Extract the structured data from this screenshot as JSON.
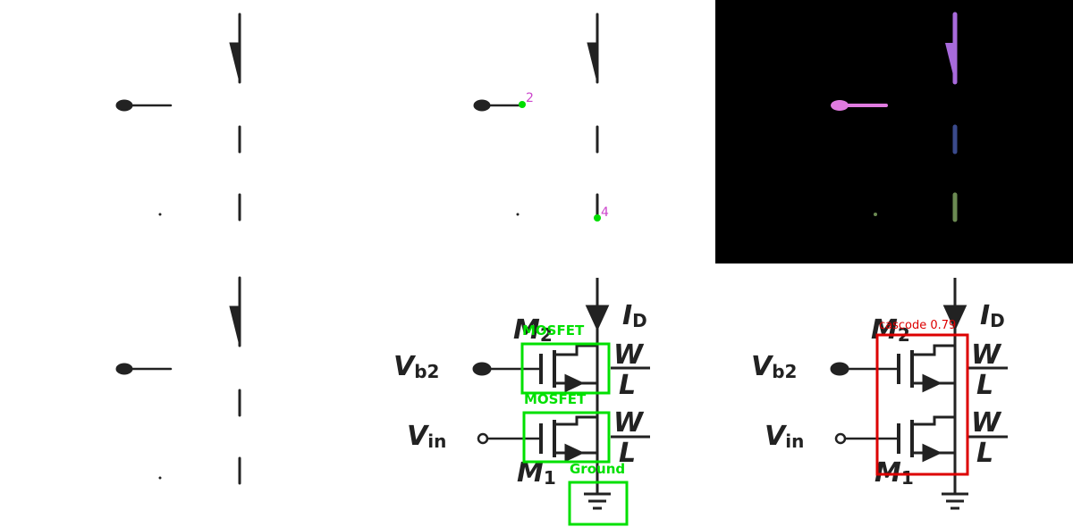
{
  "panels": {
    "p5": {
      "point_labels": [
        "2",
        "4"
      ],
      "colors": {
        "point": "#00dd00",
        "label": "#cc44cc"
      }
    },
    "p3": {
      "colors": {
        "top": "#a86adc",
        "left": "#e07be0",
        "mid": "#3a4a8c",
        "bottom": "#6b8a52",
        "dot": "#6b8a52"
      }
    },
    "p2": {
      "labels": {
        "vb2": "V",
        "vb2_sub": "b2",
        "vin": "V",
        "vin_sub": "in",
        "id": "I",
        "id_sub": "D",
        "m2": "M",
        "m2_sub": "2",
        "m1": "M",
        "m1_sub": "1",
        "w_top": "W",
        "l_top": "L",
        "w_bot": "W",
        "l_bot": "L"
      },
      "detections": [
        {
          "label": "MOSFET"
        },
        {
          "label": "MOSFET"
        },
        {
          "label": "Ground"
        }
      ],
      "colors": {
        "box": "#00e000"
      }
    },
    "p6": {
      "labels": {
        "vb2": "V",
        "vb2_sub": "b2",
        "vin": "V",
        "vin_sub": "in",
        "id": "I",
        "id_sub": "D",
        "m2": "M",
        "m2_sub": "2",
        "m1": "M",
        "m1_sub": "1",
        "w_top": "W",
        "l_top": "L",
        "w_bot": "W",
        "l_bot": "L"
      },
      "detection": {
        "label": "cascode 0.79"
      },
      "colors": {
        "box": "#dd0000"
      }
    }
  }
}
